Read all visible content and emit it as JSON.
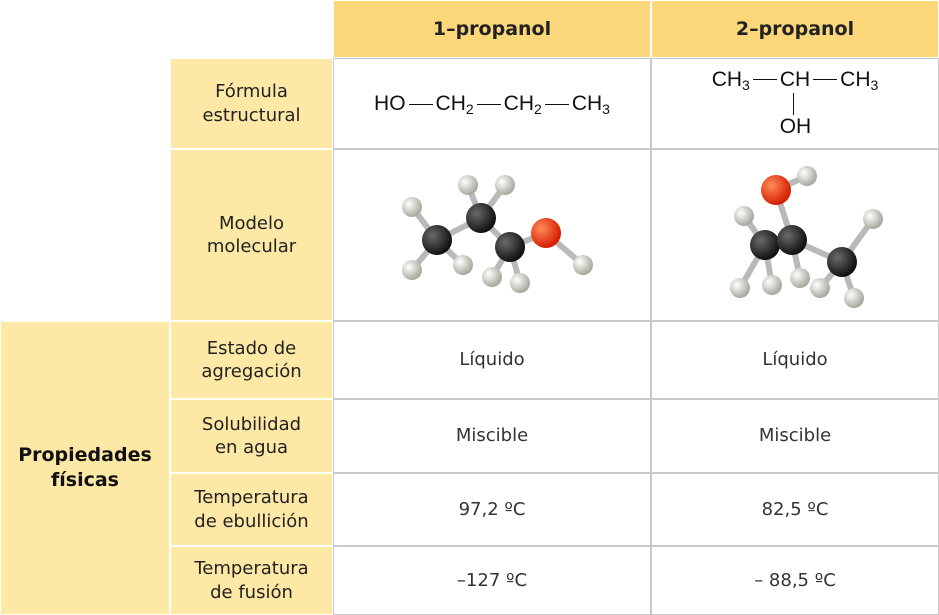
{
  "table": {
    "headers": [
      "1–propanol",
      "2–propanol"
    ],
    "group_label": "Propiedades físicas",
    "formula": {
      "label": "Fórmula\nestructural",
      "propanol_1": [
        {
          "base": "HO"
        },
        {
          "base": "CH",
          "sub": "2"
        },
        {
          "base": "CH",
          "sub": "2"
        },
        {
          "base": "CH",
          "sub": "3"
        }
      ],
      "propanol_2": {
        "chain": [
          {
            "base": "CH",
            "sub": "3"
          },
          {
            "base": "CH"
          },
          {
            "base": "CH",
            "sub": "3"
          }
        ],
        "branch": {
          "base": "OH"
        }
      }
    },
    "model_label": "Modelo\nmolecular",
    "rows": [
      [
        "Estado de\nagregación",
        "Líquido",
        "Líquido"
      ],
      [
        "Solubilidad\nen agua",
        "Miscible",
        "Miscible"
      ],
      [
        "Temperatura\nde ebullición",
        "97,2 ºC",
        "82,5 ºC"
      ],
      [
        "Temperatura\nde fusión",
        "–127 ºC",
        "– 88,5 ºC"
      ]
    ]
  }
}
